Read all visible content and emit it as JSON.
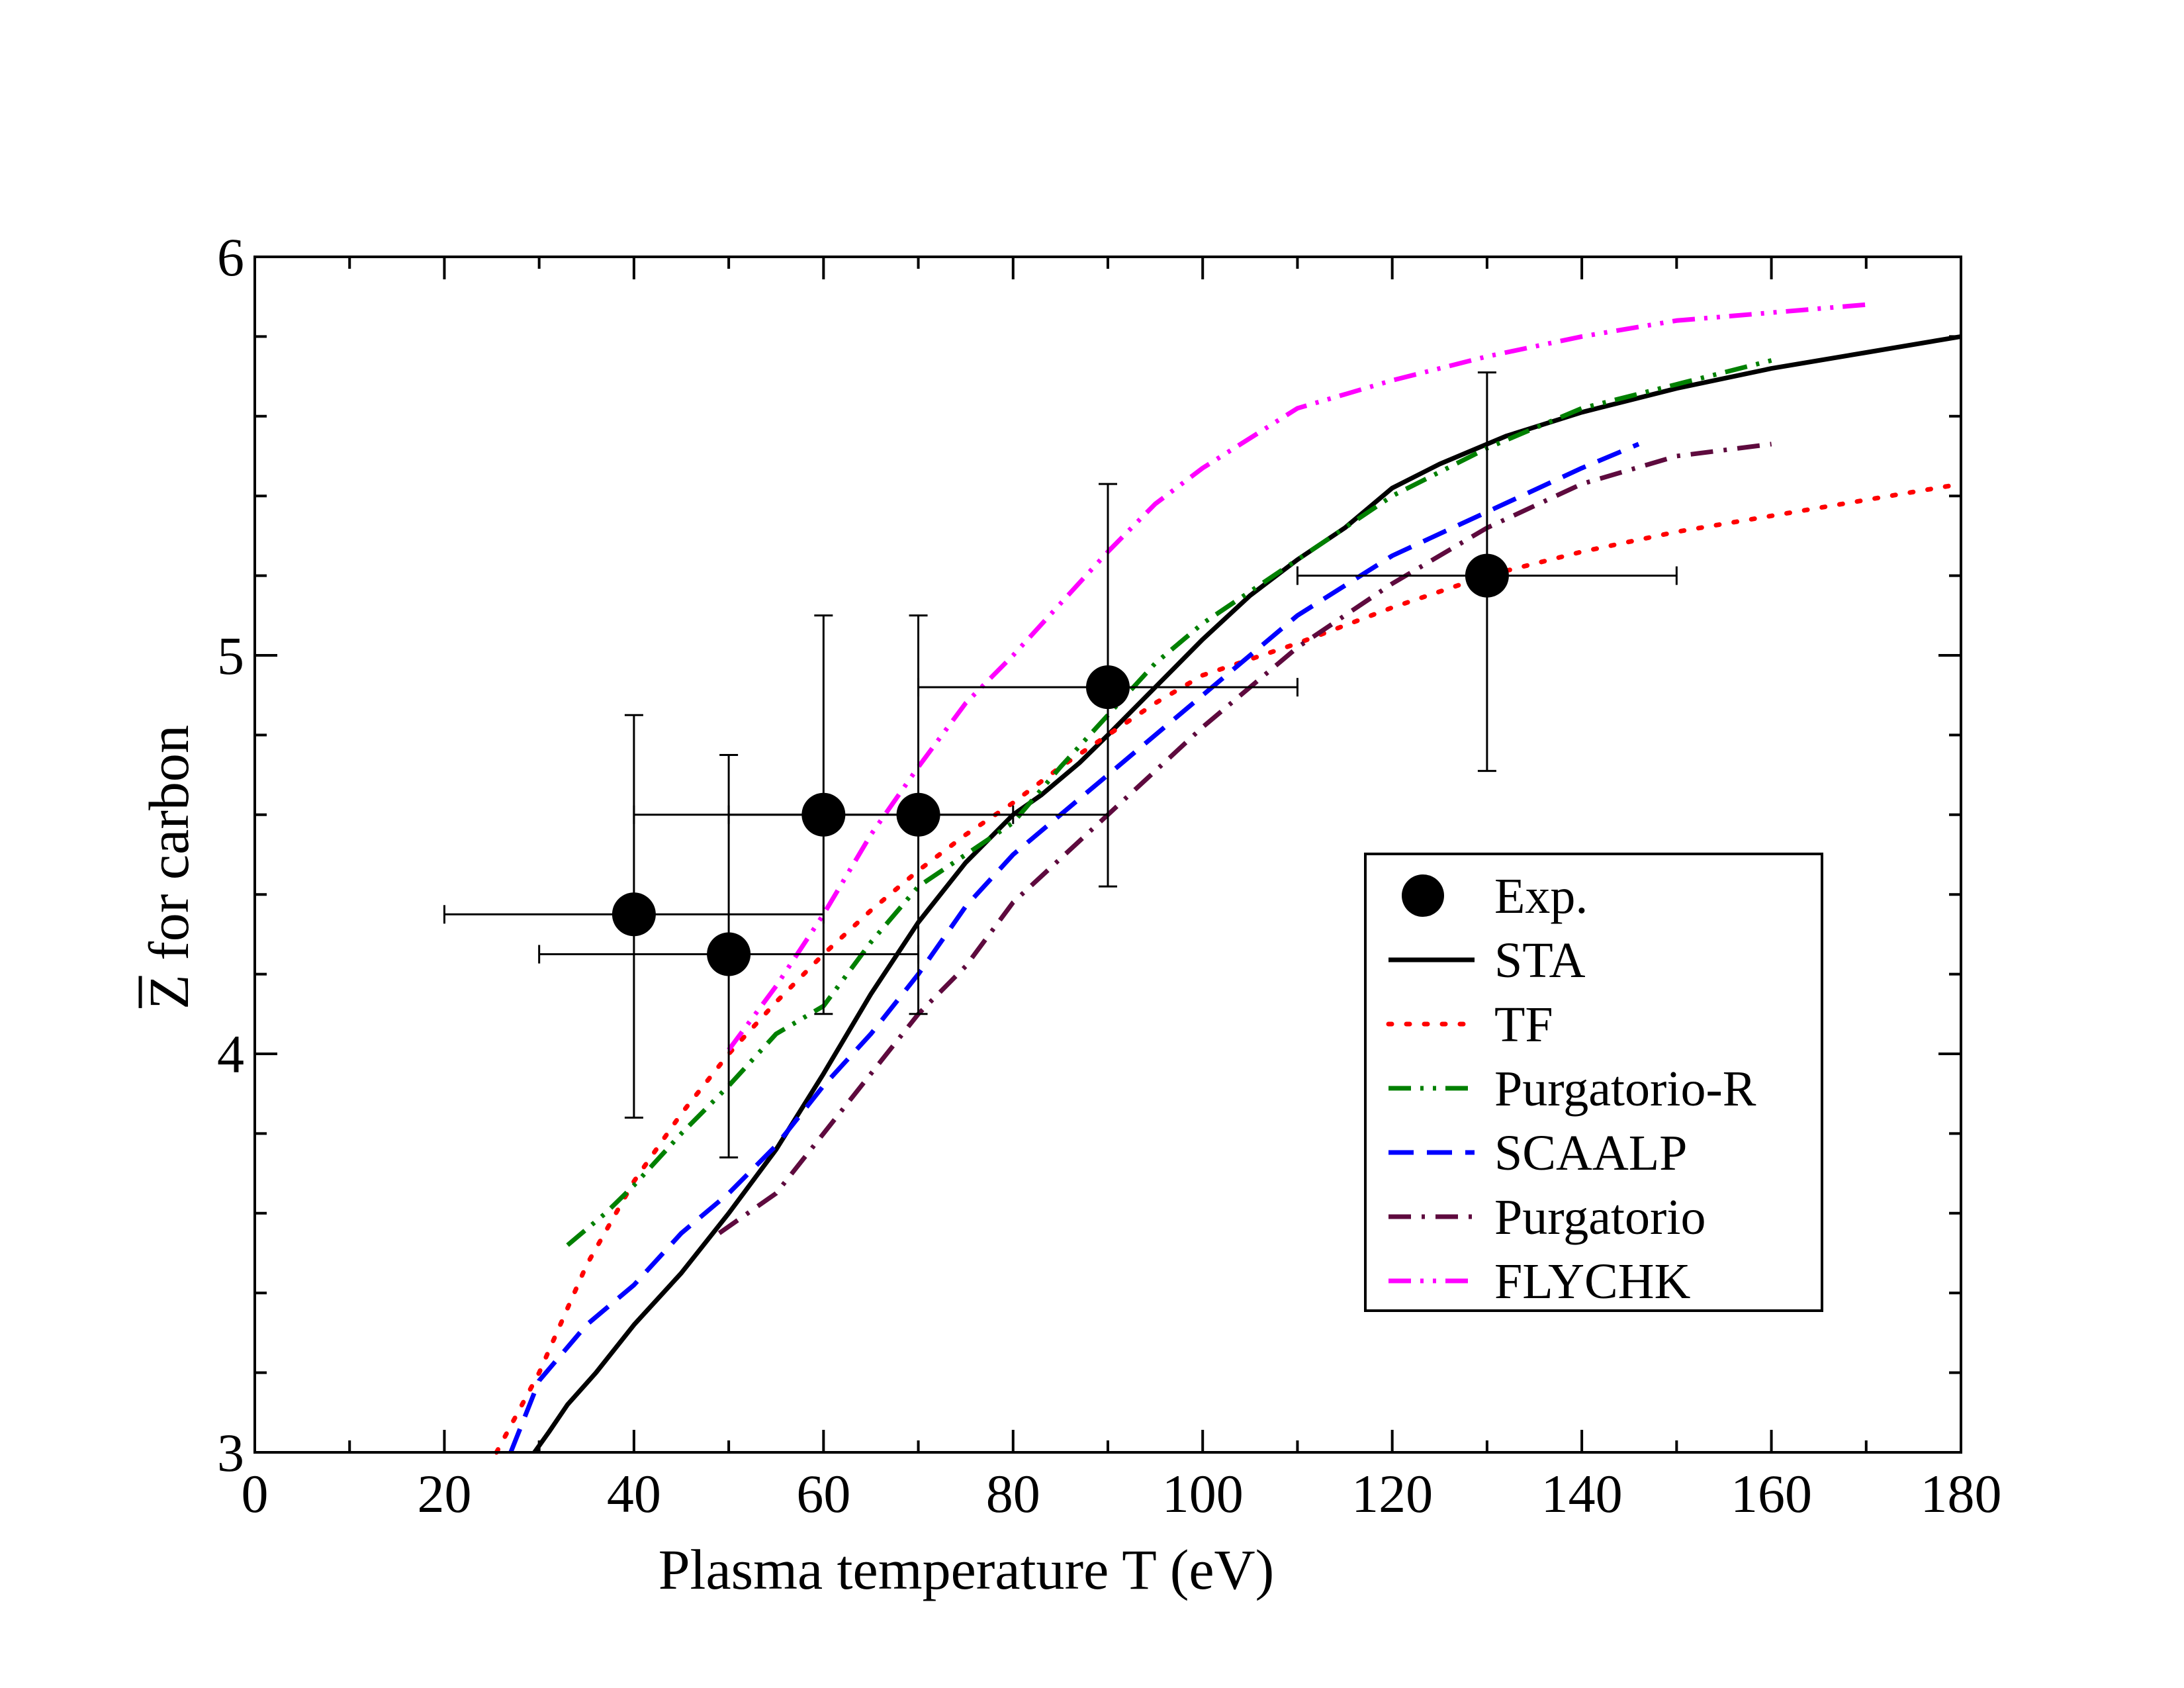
{
  "chart_data": {
    "type": "line",
    "title": "",
    "xlabel": "Plasma temperature T (eV)",
    "ylabel": "Z for carbon",
    "ylabel_overbar_symbol": "Z",
    "xlim": [
      0,
      180
    ],
    "ylim": [
      3,
      6
    ],
    "xticks": [
      0,
      20,
      40,
      60,
      80,
      100,
      120,
      140,
      160,
      180
    ],
    "yticks": [
      3,
      4,
      5,
      6
    ],
    "xtick_labels": [
      "0",
      "20",
      "40",
      "60",
      "80",
      "100",
      "120",
      "140",
      "160",
      "180"
    ],
    "ytick_labels": [
      "3",
      "4",
      "5",
      "6"
    ],
    "grid": false,
    "legend_position": "lower-right",
    "experiment": {
      "name": "Exp.",
      "color": "#000000",
      "points": [
        {
          "x": 40,
          "y": 4.35,
          "xerr": [
            20,
            60
          ],
          "yerr": [
            3.84,
            4.85
          ]
        },
        {
          "x": 50,
          "y": 4.25,
          "xerr": [
            30,
            70
          ],
          "yerr": [
            3.74,
            4.75
          ]
        },
        {
          "x": 60,
          "y": 4.6,
          "xerr": [
            40,
            80
          ],
          "yerr": [
            4.1,
            5.1
          ]
        },
        {
          "x": 70,
          "y": 4.6,
          "xerr": [
            50,
            90
          ],
          "yerr": [
            4.1,
            5.1
          ]
        },
        {
          "x": 90,
          "y": 4.92,
          "xerr": [
            70,
            110
          ],
          "yerr": [
            4.42,
            5.43
          ]
        },
        {
          "x": 130,
          "y": 5.2,
          "xerr": [
            110,
            150
          ],
          "yerr": [
            4.71,
            5.71
          ]
        }
      ]
    },
    "series": [
      {
        "name": "STA",
        "color": "#000000",
        "dash": "solid",
        "x": [
          29.5,
          31,
          33,
          36,
          40,
          45,
          50,
          55,
          60,
          65,
          70,
          75,
          80,
          83,
          87,
          90,
          95,
          100,
          105,
          110,
          115,
          120,
          125,
          132,
          140,
          150,
          160,
          170,
          180
        ],
        "y": [
          3.0,
          3.05,
          3.12,
          3.2,
          3.32,
          3.45,
          3.6,
          3.76,
          3.95,
          4.15,
          4.33,
          4.48,
          4.6,
          4.65,
          4.73,
          4.8,
          4.92,
          5.04,
          5.15,
          5.24,
          5.32,
          5.42,
          5.48,
          5.55,
          5.61,
          5.67,
          5.72,
          5.76,
          5.8
        ]
      },
      {
        "name": "TF",
        "color": "#ff0000",
        "dash": "dot",
        "x": [
          25.5,
          30,
          35,
          40,
          45,
          50,
          55,
          60,
          65,
          70,
          75,
          80,
          85,
          90,
          95,
          100,
          105,
          110,
          120,
          130,
          140,
          150,
          160,
          170,
          180
        ],
        "y": [
          3.0,
          3.2,
          3.47,
          3.68,
          3.85,
          4.0,
          4.13,
          4.25,
          4.36,
          4.46,
          4.55,
          4.63,
          4.72,
          4.8,
          4.88,
          4.95,
          4.99,
          5.03,
          5.12,
          5.2,
          5.26,
          5.31,
          5.35,
          5.39,
          5.43
        ]
      },
      {
        "name": "Purgatorio-R",
        "color": "#008000",
        "dash": "dashdotdot",
        "x": [
          33,
          37,
          40,
          45,
          50,
          55,
          60,
          65,
          70,
          75,
          80,
          85,
          90,
          95,
          100,
          110,
          120,
          130,
          140,
          150,
          160
        ],
        "y": [
          3.52,
          3.6,
          3.67,
          3.8,
          3.92,
          4.05,
          4.12,
          4.28,
          4.42,
          4.5,
          4.58,
          4.72,
          4.85,
          4.98,
          5.08,
          5.24,
          5.4,
          5.52,
          5.62,
          5.68,
          5.74
        ]
      },
      {
        "name": "SCAALP",
        "color": "#0000ff",
        "dash": "dash",
        "x": [
          27,
          30,
          35,
          40,
          45,
          50,
          55,
          60,
          65,
          70,
          75,
          80,
          90,
          100,
          110,
          120,
          130,
          140,
          146
        ],
        "y": [
          3.0,
          3.18,
          3.32,
          3.42,
          3.55,
          3.65,
          3.77,
          3.92,
          4.05,
          4.2,
          4.37,
          4.5,
          4.7,
          4.9,
          5.1,
          5.25,
          5.36,
          5.47,
          5.53
        ]
      },
      {
        "name": "Purgatorio",
        "color": "#5e0a3e",
        "dash": "dashdot",
        "x": [
          49,
          55,
          60,
          65,
          70,
          75,
          80,
          90,
          100,
          110,
          120,
          130,
          140,
          150,
          160
        ],
        "y": [
          3.55,
          3.65,
          3.8,
          3.95,
          4.1,
          4.22,
          4.38,
          4.6,
          4.82,
          5.02,
          5.18,
          5.32,
          5.43,
          5.5,
          5.53
        ]
      },
      {
        "name": "FLYCHK",
        "color": "#ff00ff",
        "dash": "dashdotdot",
        "x": [
          50,
          55,
          60,
          65,
          70,
          75,
          80,
          85,
          90,
          95,
          100,
          110,
          120,
          130,
          140,
          150,
          160,
          170
        ],
        "y": [
          4.01,
          4.17,
          4.35,
          4.55,
          4.72,
          4.88,
          5.0,
          5.13,
          5.26,
          5.38,
          5.47,
          5.62,
          5.69,
          5.75,
          5.8,
          5.84,
          5.86,
          5.88
        ]
      }
    ]
  }
}
